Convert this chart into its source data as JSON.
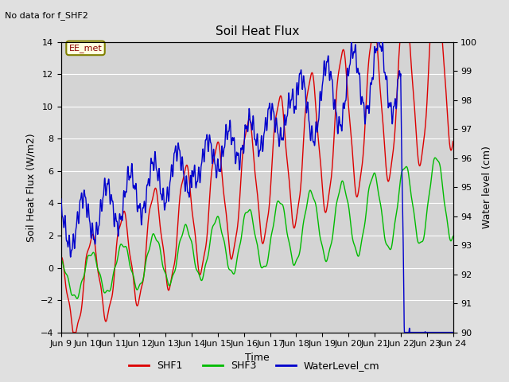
{
  "title": "Soil Heat Flux",
  "xlabel": "Time",
  "ylabel_left": "Soil Heat Flux (W/m2)",
  "ylabel_right": "Water level (cm)",
  "ylim_left": [
    -4,
    14
  ],
  "ylim_right": [
    90.0,
    100.0
  ],
  "yticks_left": [
    -4,
    -2,
    0,
    2,
    4,
    6,
    8,
    10,
    12,
    14
  ],
  "yticks_right": [
    90.0,
    91.0,
    92.0,
    93.0,
    94.0,
    95.0,
    96.0,
    97.0,
    98.0,
    99.0,
    100.0
  ],
  "xtick_labels": [
    "Jun 9",
    "Jun 10",
    "Jun 11",
    "Jun 12",
    "Jun 13",
    "Jun 14",
    "Jun 15",
    "Jun 16",
    "Jun 17",
    "Jun 18",
    "Jun 19",
    "Jun 20",
    "Jun 21",
    "Jun 22",
    "Jun 23",
    "Jun 24"
  ],
  "no_data_text": "No data for f_SHF2",
  "annotation_text": "EE_met",
  "background_color": "#e0e0e0",
  "plot_bg_color": "#d4d4d4",
  "grid_color": "#ffffff",
  "shf1_color": "#dd0000",
  "shf3_color": "#00bb00",
  "water_color": "#0000cc",
  "legend_labels": [
    "SHF1",
    "SHF3",
    "WaterLevel_cm"
  ],
  "figsize": [
    6.4,
    4.8
  ],
  "dpi": 100
}
